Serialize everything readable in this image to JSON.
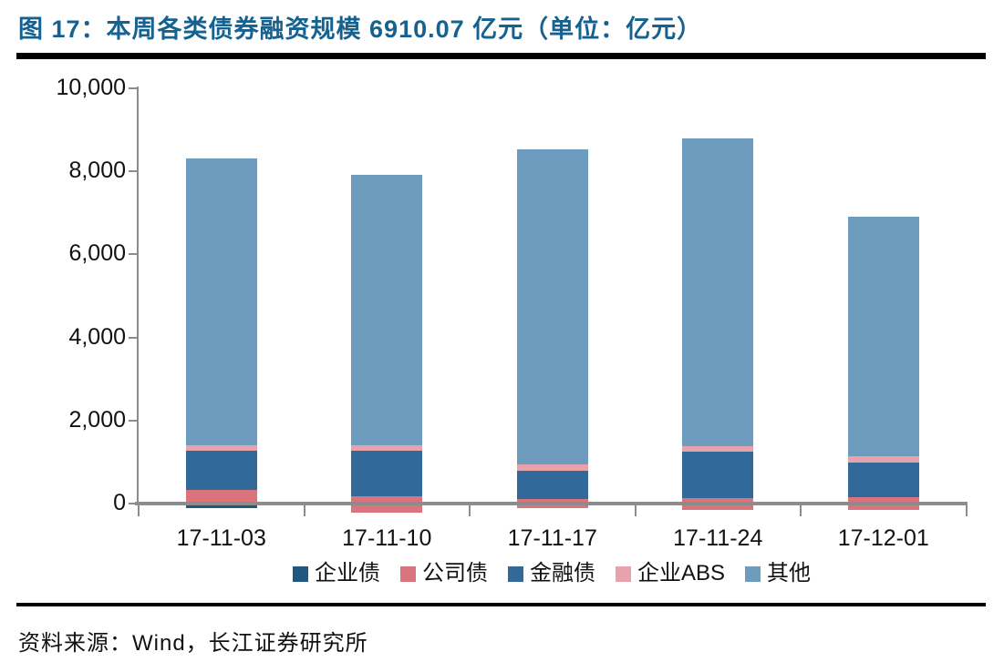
{
  "title": {
    "text": "图 17：本周各类债券融资规模 6910.07 亿元（单位：亿元）",
    "color": "#15618F"
  },
  "source": {
    "text": "资料来源：Wind，长江证券研究所"
  },
  "colors": {
    "axis": "#8C8C8C",
    "rule": "#000000",
    "label_text": "#111111"
  },
  "chart_data": {
    "type": "bar",
    "stacked": true,
    "unit": "亿元",
    "grid": false,
    "legend_position": "bottom",
    "ylim": [
      0,
      10000
    ],
    "yticks": [
      {
        "value": 0,
        "label": "0"
      },
      {
        "value": 2000,
        "label": "2,000"
      },
      {
        "value": 4000,
        "label": "4,000"
      },
      {
        "value": 6000,
        "label": "6,000"
      },
      {
        "value": 8000,
        "label": "8,000"
      },
      {
        "value": 10000,
        "label": "10,000"
      }
    ],
    "categories": [
      "17-11-03",
      "17-11-10",
      "17-11-17",
      "17-11-24",
      "17-12-01"
    ],
    "series": [
      {
        "name": "企业债",
        "color": "#1F5880",
        "values": [
          -110,
          0,
          0,
          0,
          0
        ]
      },
      {
        "name": "公司债",
        "color": "#D9737C",
        "values": [
          330,
          395,
          220,
          285,
          310
        ]
      },
      {
        "name": "金融债",
        "color": "#31699B",
        "values": [
          940,
          1095,
          680,
          1120,
          835
        ]
      },
      {
        "name": "企业ABS",
        "color": "#E8A2AB",
        "values": [
          130,
          130,
          150,
          130,
          150
        ]
      },
      {
        "name": "其他",
        "color": "#6D9CBE",
        "values": [
          6910,
          6520,
          7590,
          7415,
          5770
        ]
      }
    ],
    "bars": [
      {
        "category": "17-11-03",
        "total_top": 8310,
        "segments": [
          {
            "name": "企业债",
            "from": -110,
            "to": 0
          },
          {
            "name": "公司债",
            "from": 0,
            "to": 330
          },
          {
            "name": "金融债",
            "from": 330,
            "to": 1270
          },
          {
            "name": "企业ABS",
            "from": 1270,
            "to": 1400
          },
          {
            "name": "其他",
            "from": 1400,
            "to": 8310
          }
        ]
      },
      {
        "category": "17-11-10",
        "total_top": 7920,
        "segments": [
          {
            "name": "公司债",
            "from": -220,
            "to": 175
          },
          {
            "name": "金融债",
            "from": 175,
            "to": 1270
          },
          {
            "name": "企业ABS",
            "from": 1270,
            "to": 1400
          },
          {
            "name": "其他",
            "from": 1400,
            "to": 7920
          }
        ]
      },
      {
        "category": "17-11-17",
        "total_top": 8530,
        "segments": [
          {
            "name": "公司债",
            "from": -110,
            "to": 110
          },
          {
            "name": "金融债",
            "from": 110,
            "to": 790
          },
          {
            "name": "企业ABS",
            "from": 790,
            "to": 940
          },
          {
            "name": "其他",
            "from": 940,
            "to": 8530
          }
        ]
      },
      {
        "category": "17-11-24",
        "total_top": 8795,
        "segments": [
          {
            "name": "公司债",
            "from": -155,
            "to": 130
          },
          {
            "name": "金融债",
            "from": 130,
            "to": 1250
          },
          {
            "name": "企业ABS",
            "from": 1250,
            "to": 1380
          },
          {
            "name": "其他",
            "from": 1380,
            "to": 8795
          }
        ]
      },
      {
        "category": "17-12-01",
        "total_top": 6910,
        "segments": [
          {
            "name": "公司债",
            "from": -155,
            "to": 155
          },
          {
            "name": "金融债",
            "from": 155,
            "to": 990
          },
          {
            "name": "企业ABS",
            "from": 990,
            "to": 1140
          },
          {
            "name": "其他",
            "from": 1140,
            "to": 6910
          }
        ]
      }
    ]
  }
}
